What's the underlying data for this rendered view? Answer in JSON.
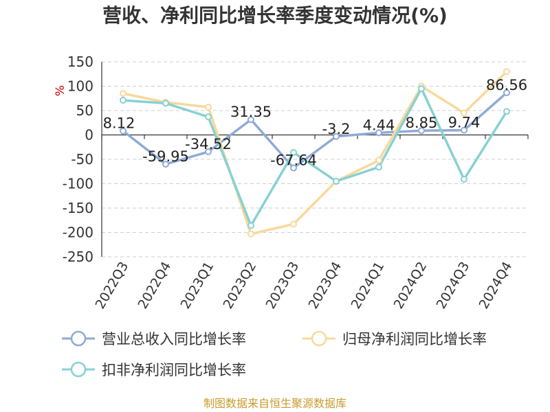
{
  "chart_data": {
    "type": "line",
    "title": "营收、净利同比增长率季度变动情况(%)",
    "ylabel": "%",
    "categories": [
      "2022Q3",
      "2022Q4",
      "2023Q1",
      "2023Q2",
      "2023Q3",
      "2023Q4",
      "2024Q1",
      "2024Q2",
      "2024Q3",
      "2024Q4"
    ],
    "ylim": [
      -250,
      150
    ],
    "yticks": [
      150,
      100,
      50,
      0,
      -50,
      -100,
      -150,
      -200,
      -250
    ],
    "ytick_labels": [
      "150",
      "100",
      "50",
      "0",
      "-50",
      "-100",
      "-150",
      "-200",
      "-250"
    ],
    "grid": true,
    "legend_position": "bottom",
    "series": [
      {
        "name": "营业总收入同比增长率",
        "color": "#8eaad6",
        "values": [
          8.12,
          -59.95,
          -34.52,
          31.35,
          -67.64,
          -3.2,
          4.44,
          8.85,
          9.74,
          86.56
        ],
        "labels": [
          "8.12",
          "-59.95",
          "-34.52",
          "31.35",
          "-67.64",
          "-3.2",
          "4.44",
          "8.85",
          "9.74",
          "86.56"
        ]
      },
      {
        "name": "归母净利润同比增长率",
        "color": "#f8d89b",
        "values": [
          85,
          67,
          57,
          -203,
          -183,
          -95,
          -52,
          100,
          45,
          130
        ]
      },
      {
        "name": "扣非净利润同比增长率",
        "color": "#86d1d3",
        "values": [
          71,
          65,
          37,
          -186,
          -36,
          -95,
          -66,
          95,
          -91,
          48
        ]
      }
    ],
    "source": "制图数据来自恒生聚源数据库"
  }
}
